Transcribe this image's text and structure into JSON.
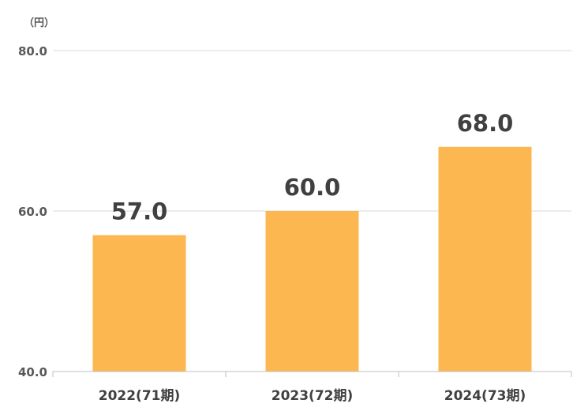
{
  "chart_data": {
    "type": "bar",
    "unit_label": "（円）",
    "categories": [
      "2022(71期)",
      "2023(72期)",
      "2024(73期)"
    ],
    "values": [
      57.0,
      60.0,
      68.0
    ],
    "data_labels": [
      "57.0",
      "60.0",
      "68.0"
    ],
    "ylim": [
      40,
      80
    ],
    "y_ticks": [
      40,
      60,
      80
    ],
    "y_tick_labels": [
      "40.0",
      "60.0",
      "80.0"
    ],
    "grid": true,
    "legend": "none",
    "colors": {
      "bar": "#FDB751",
      "grid": "#D9D9D9",
      "axis": "#BFBFBF"
    }
  }
}
